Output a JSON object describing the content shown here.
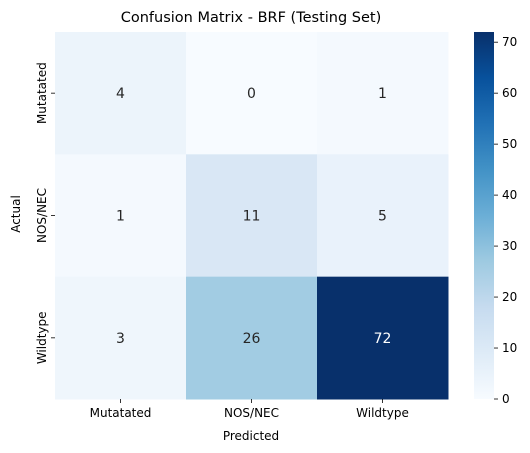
{
  "chart_data": {
    "type": "heatmap",
    "title": "Confusion Matrix - BRF (Testing Set)",
    "xlabel": "Predicted",
    "ylabel": "Actual",
    "x_categories": [
      "Mutatated",
      "NOS/NEC",
      "Wildtype"
    ],
    "y_categories": [
      "Mutatated",
      "NOS/NEC",
      "Wildtype"
    ],
    "values": [
      [
        4,
        0,
        1
      ],
      [
        1,
        11,
        5
      ],
      [
        3,
        26,
        72
      ]
    ],
    "colormap": "Blues",
    "color_range": [
      0,
      72
    ],
    "colorbar_ticks": [
      0,
      10,
      20,
      30,
      40,
      50,
      60,
      70
    ],
    "colors": {
      "low": "#f7fbff",
      "high": "#08306b",
      "text_dark": "#262626",
      "text_light": "#ffffff"
    }
  }
}
